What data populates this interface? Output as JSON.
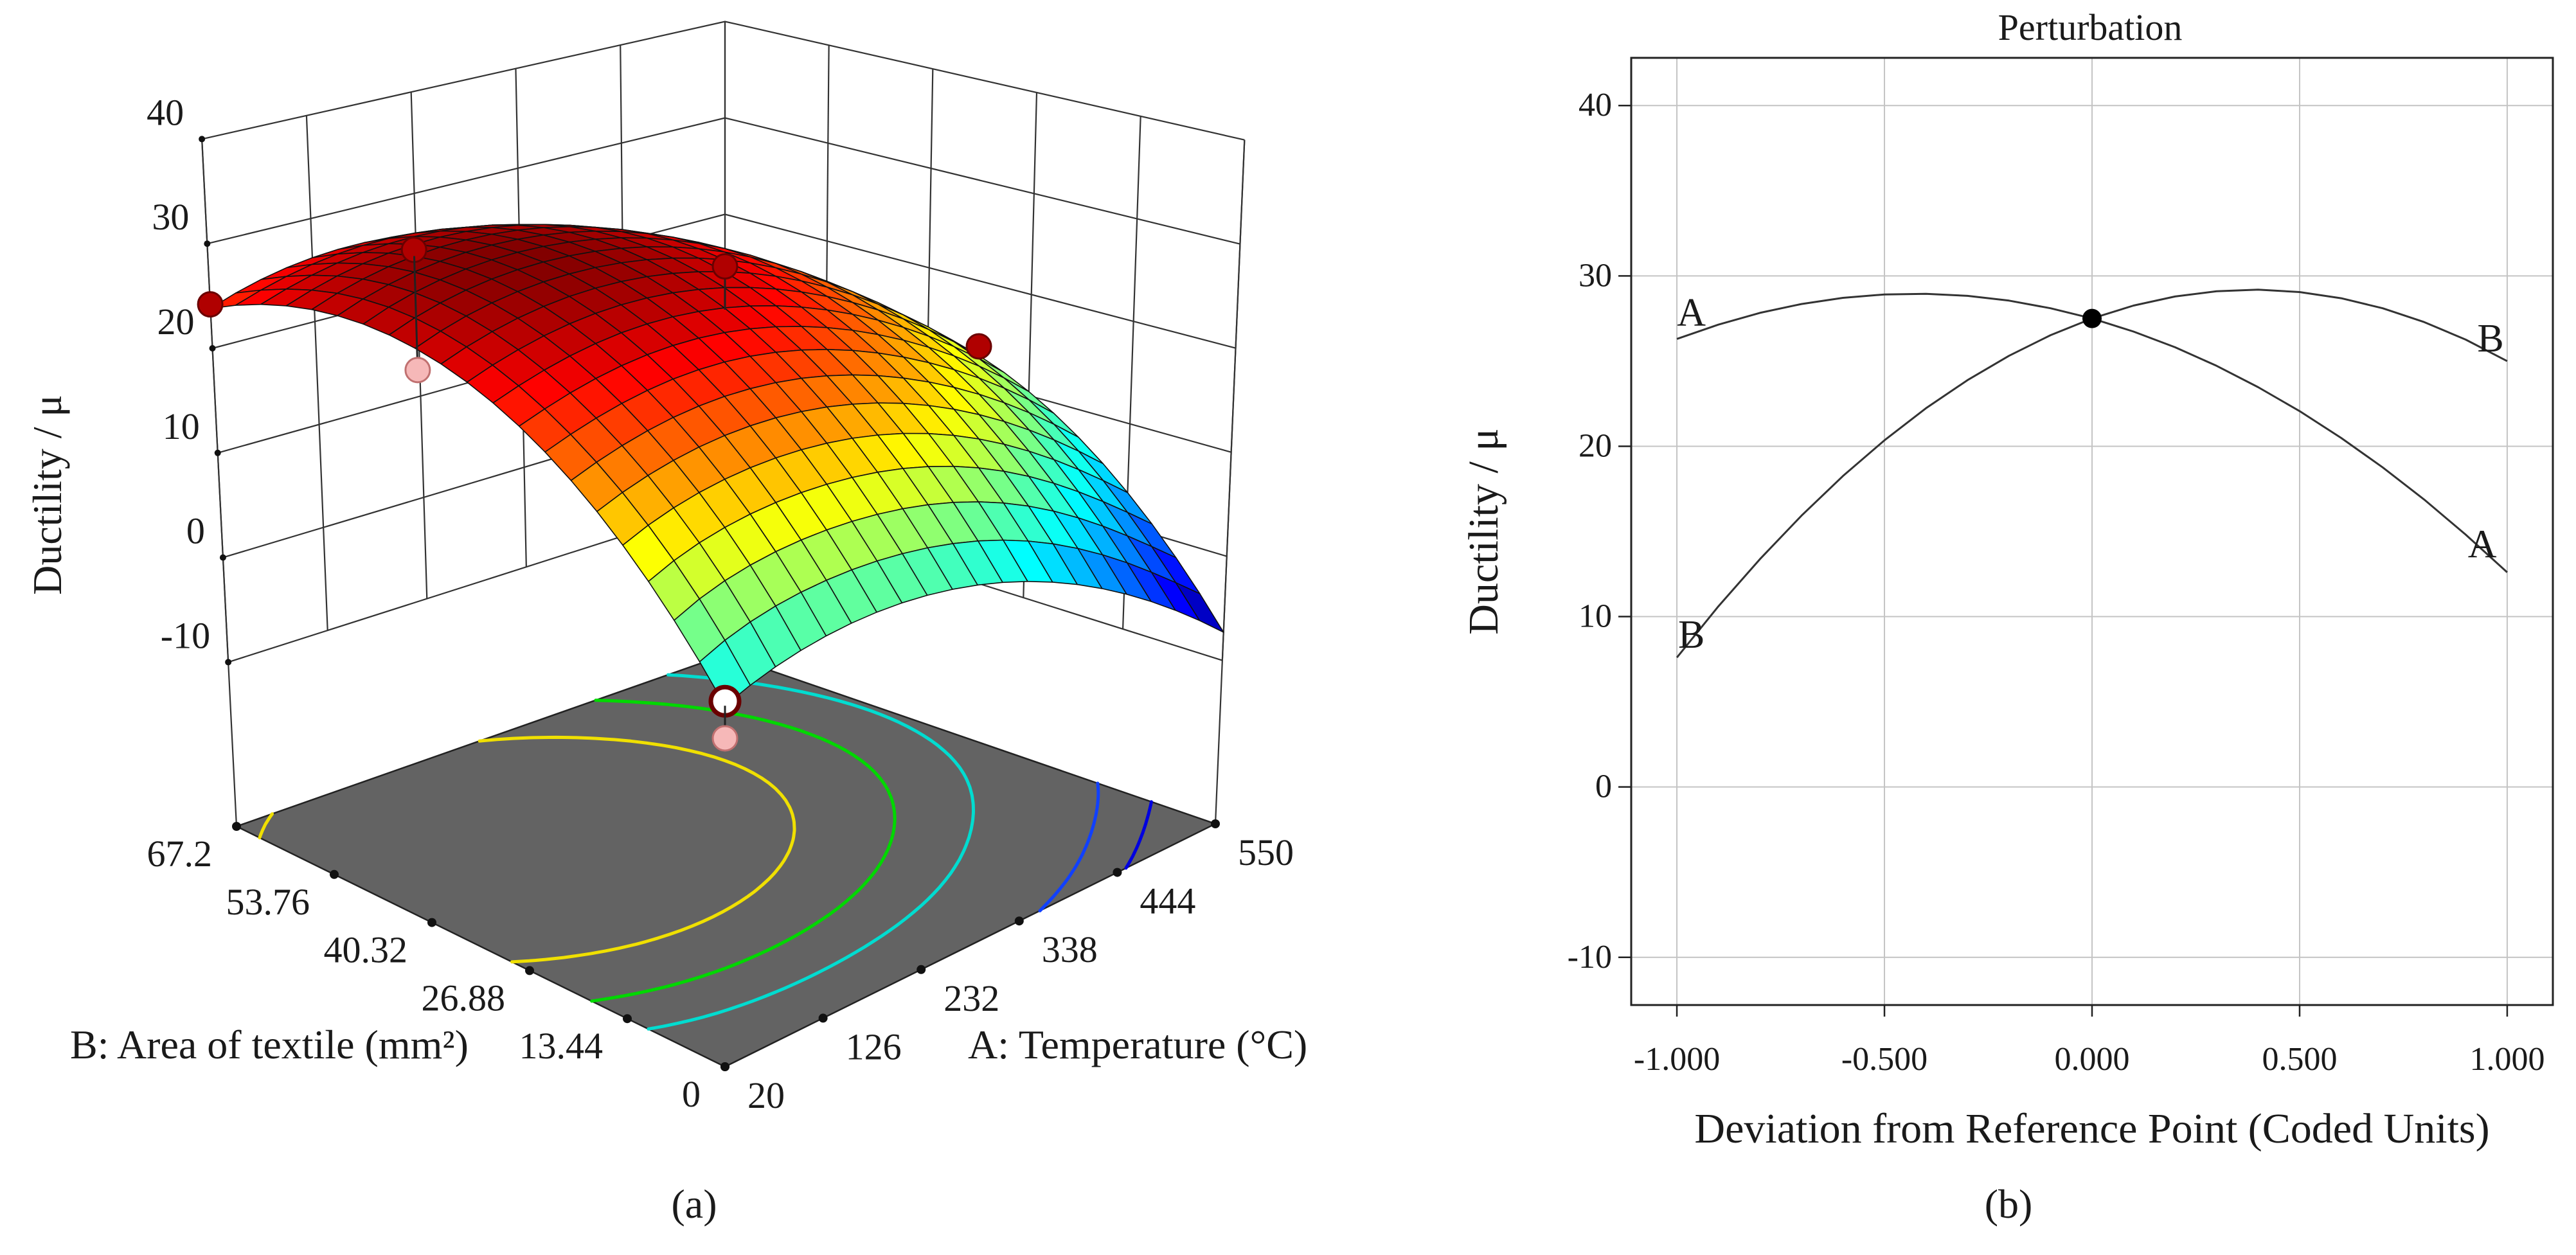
{
  "figure": {
    "panel_a_label": "(a)",
    "panel_b_label": "(b)"
  },
  "chart_data": [
    {
      "type": "surface",
      "panel": "(a)",
      "xlabel": "A: Temperature (°C)",
      "ylabel": "B: Area of textile (mm²)",
      "zlabel": "Ductility / μ",
      "x_ticks": [
        20,
        126,
        232,
        338,
        444,
        550
      ],
      "x_tick_labels": [
        "20",
        "126",
        "232",
        "338",
        "444",
        "550"
      ],
      "y_ticks": [
        0,
        13.44,
        26.88,
        40.32,
        53.76,
        67.2
      ],
      "y_tick_labels": [
        "0",
        "13.44",
        "26.88",
        "40.32",
        "53.76",
        "67.2"
      ],
      "z_ticks": [
        -10,
        0,
        10,
        20,
        30,
        40
      ],
      "z_tick_labels": [
        "-10",
        "0",
        "10",
        "20",
        "30",
        "40"
      ],
      "surface_z_grid_rows_by_B_cols_by_A": [
        [
          6.4,
          8.8,
          8.6,
          5.9,
          0.6,
          -7.3
        ],
        [
          17.0,
          19.5,
          19.3,
          16.6,
          11.2,
          3.3
        ],
        [
          24.1,
          26.5,
          26.4,
          23.6,
          18.3,
          10.4
        ],
        [
          27.6,
          30.0,
          29.8,
          27.1,
          21.8,
          13.9
        ],
        [
          27.5,
          29.9,
          29.7,
          27.0,
          21.7,
          13.8
        ],
        [
          23.8,
          26.2,
          26.0,
          23.3,
          18.0,
          10.1
        ]
      ],
      "colormap": "jet",
      "floor_color": "#636363",
      "floor_contours": [
        {
          "level": 25,
          "color": "#f0e000"
        },
        {
          "level": 20,
          "color": "#00d800"
        },
        {
          "level": 15,
          "color": "#00dcd0"
        },
        {
          "level": 5,
          "color": "#1040ff"
        },
        {
          "level": 0,
          "color": "#0000e0"
        }
      ],
      "design_points": [
        {
          "A": 20,
          "B": 67.2,
          "ductility": 24.2,
          "position": "above"
        },
        {
          "A": 126,
          "B": 53.76,
          "ductility": 30.5,
          "position": "above"
        },
        {
          "A": 126,
          "B": 53.76,
          "ductility": 19.0,
          "position": "below"
        },
        {
          "A": 550,
          "B": 67.2,
          "ductility": 14.6,
          "position": "above"
        },
        {
          "A": 550,
          "B": 33.6,
          "ductility": 13.5,
          "position": "above"
        },
        {
          "A": 20,
          "B": 0,
          "ductility": 6.8,
          "position": "on"
        },
        {
          "A": 20,
          "B": 0,
          "ductility": 3.5,
          "position": "below"
        }
      ],
      "point_colors": {
        "above": "#b00000",
        "below": "#f6b8b8",
        "on": "#ffffff"
      }
    },
    {
      "type": "line",
      "panel": "(b)",
      "title": "Perturbation",
      "xlabel": "Deviation from Reference Point (Coded Units)",
      "ylabel": "Ductility / μ",
      "xlim": [
        -1.11,
        1.11
      ],
      "ylim": [
        -12.8,
        42.8
      ],
      "x_ticks": [
        -1,
        -0.5,
        0,
        0.5,
        1
      ],
      "x_tick_labels": [
        "-1.000",
        "-0.500",
        "0.000",
        "0.500",
        "1.000"
      ],
      "y_ticks": [
        -10,
        0,
        10,
        20,
        30,
        40
      ],
      "y_tick_labels": [
        "-10",
        "0",
        "10",
        "20",
        "30",
        "40"
      ],
      "grid": true,
      "x": [
        -1,
        -0.9,
        -0.8,
        -0.7,
        -0.6,
        -0.5,
        -0.4,
        -0.3,
        -0.2,
        -0.1,
        0,
        0.1,
        0.2,
        0.3,
        0.4,
        0.5,
        0.6,
        0.7,
        0.8,
        0.9,
        1
      ],
      "series": [
        {
          "name": "A",
          "values": [
            26.3,
            27.14,
            27.83,
            28.35,
            28.71,
            28.91,
            28.95,
            28.83,
            28.55,
            28.1,
            27.5,
            26.73,
            25.81,
            24.72,
            23.47,
            22.06,
            20.49,
            18.76,
            16.87,
            14.81,
            12.6
          ]
        },
        {
          "name": "B",
          "values": [
            7.6,
            10.6,
            13.37,
            15.92,
            18.25,
            20.35,
            22.23,
            23.88,
            25.31,
            26.52,
            27.5,
            28.26,
            28.79,
            29.1,
            29.19,
            29.05,
            28.69,
            28.1,
            27.29,
            26.26,
            25.0
          ]
        }
      ],
      "curve_labels": [
        {
          "text": "A",
          "x": -0.965,
          "y": 27.9
        },
        {
          "text": "B",
          "x": 0.96,
          "y": 26.4
        },
        {
          "text": "A",
          "x": 0.94,
          "y": 14.3
        },
        {
          "text": "B",
          "x": -0.965,
          "y": 9.0
        }
      ],
      "reference_point": {
        "x": 0,
        "y": 27.5
      }
    }
  ]
}
